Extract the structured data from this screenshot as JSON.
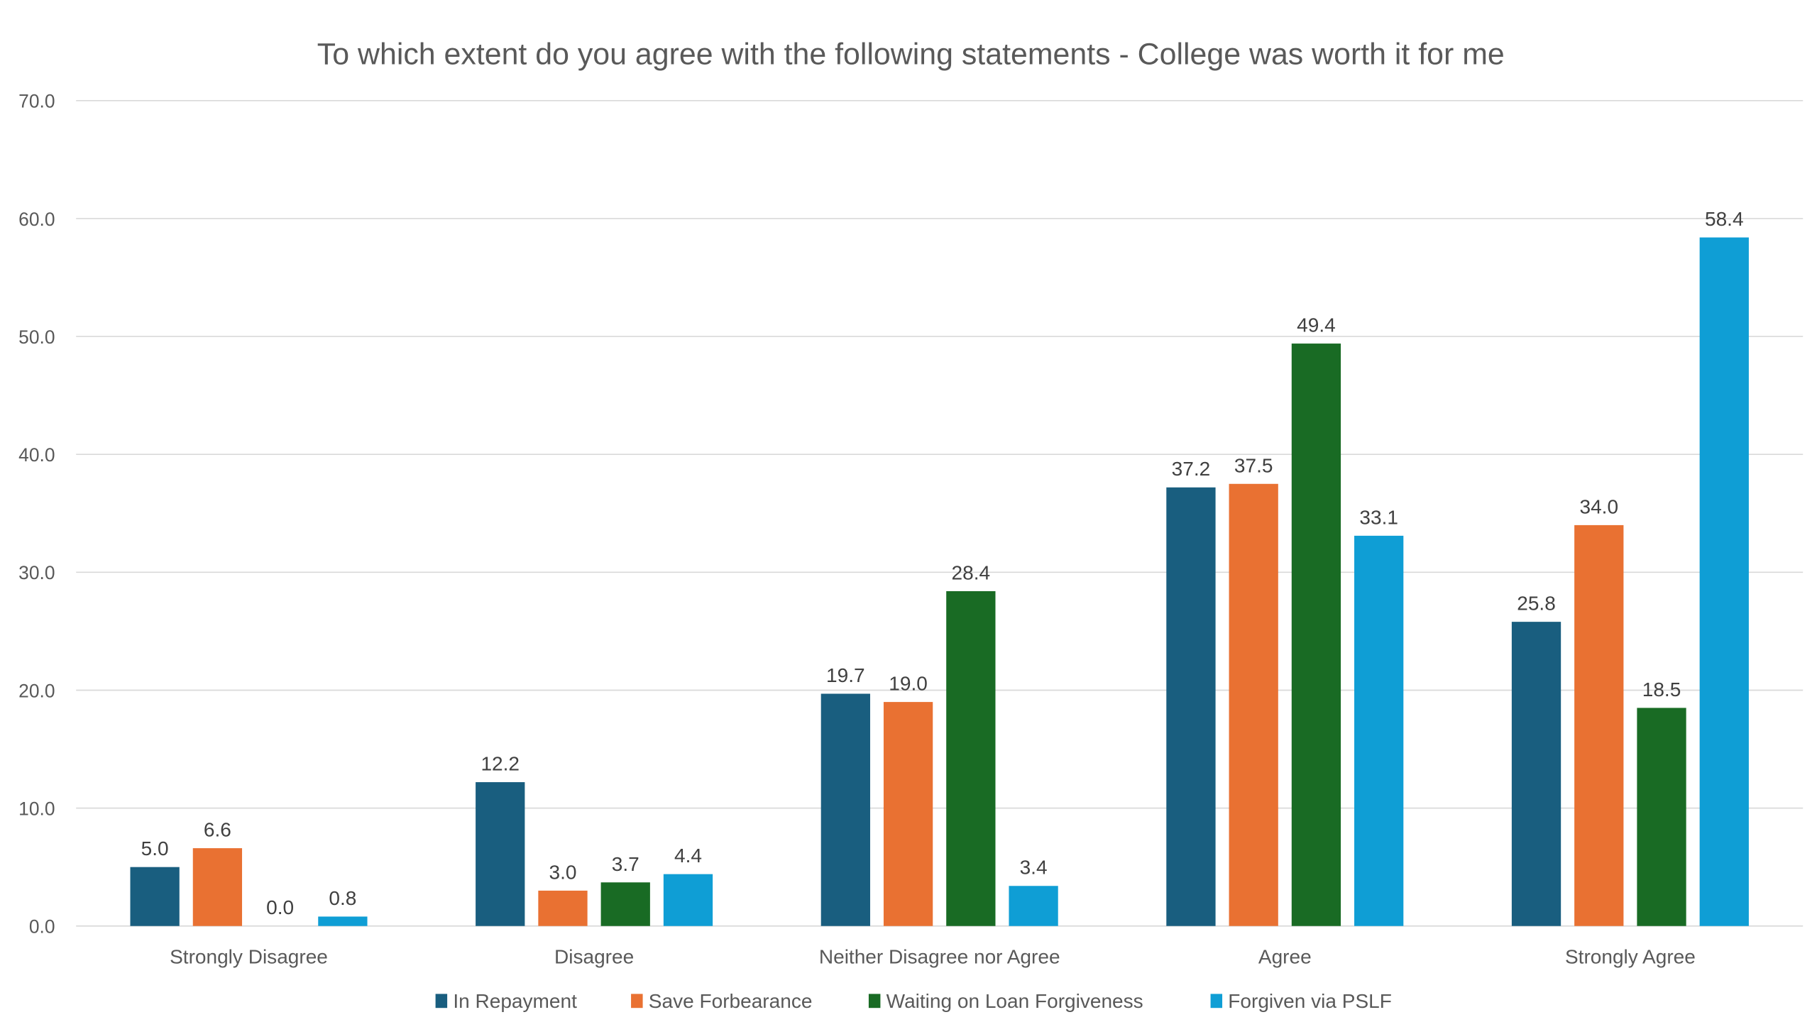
{
  "chart_data": {
    "type": "bar",
    "title": "To which extent do you agree with the following statements - College was worth it for me",
    "xlabel": "",
    "ylabel": "",
    "ylim": [
      0,
      70
    ],
    "yticks": [
      "0.0",
      "10.0",
      "20.0",
      "30.0",
      "40.0",
      "50.0",
      "60.0",
      "70.0"
    ],
    "grid": true,
    "legend_position": "bottom",
    "categories": [
      "Strongly Disagree",
      "Disagree",
      "Neither Disagree nor Agree",
      "Agree",
      "Strongly Agree"
    ],
    "series": [
      {
        "name": "In Repayment",
        "color": "#195E7F",
        "values": [
          5.0,
          12.2,
          19.7,
          37.2,
          25.8
        ]
      },
      {
        "name": "Save Forbearance",
        "color": "#E97132",
        "values": [
          6.6,
          3.0,
          19.0,
          37.5,
          34.0
        ]
      },
      {
        "name": "Waiting on Loan Forgiveness",
        "color": "#196B24",
        "values": [
          0.0,
          3.7,
          28.4,
          49.4,
          18.5
        ]
      },
      {
        "name": "Forgiven via PSLF",
        "color": "#0F9ED5",
        "values": [
          0.8,
          4.4,
          3.4,
          33.1,
          58.4
        ]
      }
    ]
  }
}
